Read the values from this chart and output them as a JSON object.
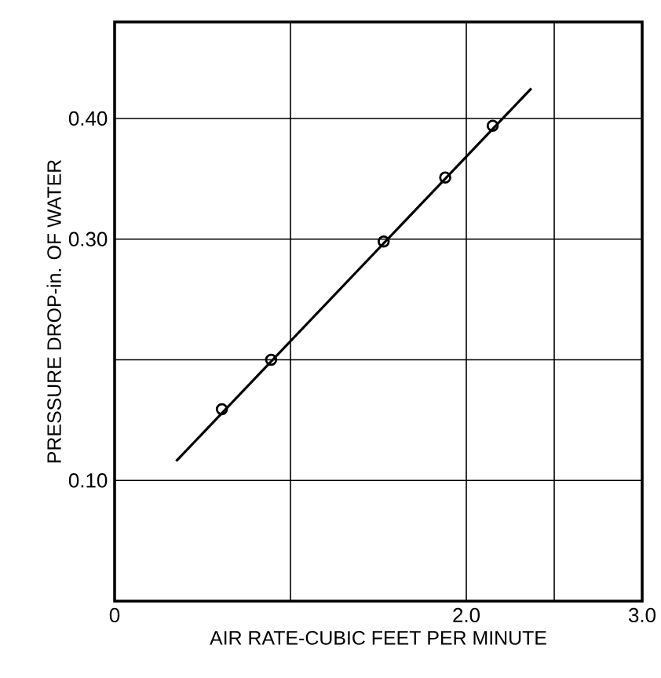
{
  "chart_data": {
    "type": "scatter",
    "xlabel": "AIR RATE-CUBIC FEET PER MINUTE",
    "ylabel": "PRESSURE DROP-in. OF WATER",
    "xlim": [
      0,
      3.0
    ],
    "ylim": [
      0,
      0.48
    ],
    "xticks": [
      {
        "value": 0,
        "label": "0"
      },
      {
        "value": 1.0,
        "label": null
      },
      {
        "value": 2.0,
        "label": "2.0"
      },
      {
        "value": 2.5,
        "label": null
      },
      {
        "value": 3.0,
        "label": "3.0"
      }
    ],
    "yticks": [
      {
        "value": 0.1,
        "label": "0.10"
      },
      {
        "value": 0.2,
        "label": null
      },
      {
        "value": 0.3,
        "label": "0.30"
      },
      {
        "value": 0.4,
        "label": "0.40"
      }
    ],
    "grid": true,
    "series": [
      {
        "type": "line",
        "color": "#000000",
        "marker": "none",
        "line_style": "solid",
        "x": [
          0.35,
          2.37
        ],
        "values": [
          0.116,
          0.425
        ]
      },
      {
        "color": "#000000",
        "marker": "circle",
        "x": [
          0.61,
          0.89,
          1.53,
          1.88,
          2.15
        ],
        "values": [
          0.159,
          0.2,
          0.298,
          0.351,
          0.394
        ]
      }
    ]
  }
}
